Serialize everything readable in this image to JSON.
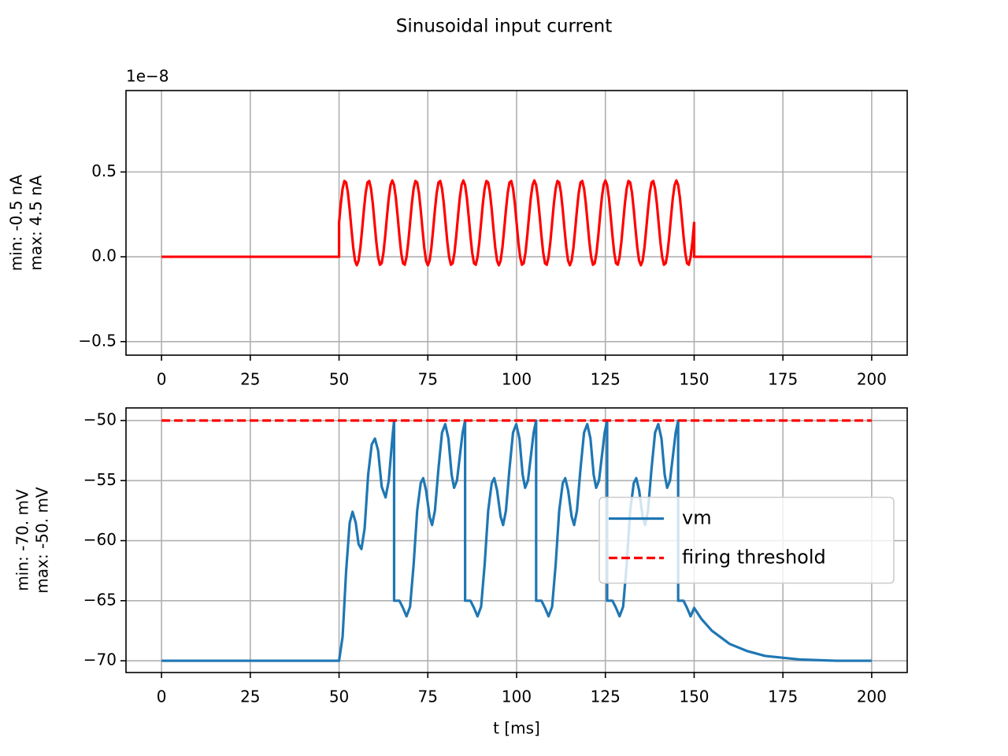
{
  "title": "Sinusoidal input current",
  "chart_data": [
    {
      "type": "line",
      "offset_label": "1e−8",
      "ylabel": [
        "min: -0.5 nA",
        "max: 4.5 nA"
      ],
      "xlim": [
        -10,
        210
      ],
      "ylim": [
        -0.58,
        0.98
      ],
      "xticks": [
        0,
        25,
        50,
        75,
        100,
        125,
        150,
        175,
        200
      ],
      "yticks": [
        {
          "value": -0.5,
          "label": "−0.5"
        },
        {
          "value": 0,
          "label": "0.0"
        },
        0.5
      ],
      "grid": true,
      "series": [
        {
          "color": "#ff0000",
          "x": [
            0,
            50,
            50,
            50.5,
            51,
            51.5,
            52,
            52.5,
            53,
            53.5,
            54,
            54.5,
            55,
            55.5,
            56,
            56.5,
            57,
            57.5,
            58,
            58.5,
            59,
            59.5,
            60,
            60.5,
            61,
            61.5,
            62,
            62.5,
            63,
            63.5,
            64,
            64.5,
            65,
            65.5,
            66,
            66.5,
            67,
            67.5,
            68,
            68.5,
            69,
            69.5,
            70,
            70.5,
            71,
            71.5,
            72,
            72.5,
            73,
            73.5,
            74,
            74.5,
            75,
            75.5,
            76,
            76.5,
            77,
            77.5,
            78,
            78.5,
            79,
            79.5,
            80,
            80.5,
            81,
            81.5,
            82,
            82.5,
            83,
            83.5,
            84,
            84.5,
            85,
            85.5,
            86,
            86.5,
            87,
            87.5,
            88,
            88.5,
            89,
            89.5,
            90,
            90.5,
            91,
            91.5,
            92,
            92.5,
            93,
            93.5,
            94,
            94.5,
            95,
            95.5,
            96,
            96.5,
            97,
            97.5,
            98,
            98.5,
            99,
            99.5,
            100,
            100.5,
            101,
            101.5,
            102,
            102.5,
            103,
            103.5,
            104,
            104.5,
            105,
            105.5,
            106,
            106.5,
            107,
            107.5,
            108,
            108.5,
            109,
            109.5,
            110,
            110.5,
            111,
            111.5,
            112,
            112.5,
            113,
            113.5,
            114,
            114.5,
            115,
            115.5,
            116,
            116.5,
            117,
            117.5,
            118,
            118.5,
            119,
            119.5,
            120,
            120.5,
            121,
            121.5,
            122,
            122.5,
            123,
            123.5,
            124,
            124.5,
            125,
            125.5,
            126,
            126.5,
            127,
            127.5,
            128,
            128.5,
            129,
            129.5,
            130,
            130.5,
            131,
            131.5,
            132,
            132.5,
            133,
            133.5,
            134,
            134.5,
            135,
            135.5,
            136,
            136.5,
            137,
            137.5,
            138,
            138.5,
            139,
            139.5,
            140,
            140.5,
            141,
            141.5,
            142,
            142.5,
            143,
            143.5,
            144,
            144.5,
            145,
            145.5,
            146,
            146.5,
            147,
            147.5,
            148,
            148.5,
            149,
            149.5,
            150,
            150,
            200
          ],
          "values": [
            0,
            0,
            0.2,
            0.314,
            0.402,
            0.447,
            0.438,
            0.377,
            0.277,
            0.161,
            0.053,
            -0.023,
            -0.05,
            -0.023,
            0.053,
            0.161,
            0.277,
            0.377,
            0.438,
            0.447,
            0.402,
            0.314,
            0.2,
            0.086,
            -0.002,
            -0.047,
            -0.038,
            0.023,
            0.123,
            0.239,
            0.347,
            0.423,
            0.45,
            0.423,
            0.347,
            0.239,
            0.123,
            0.023,
            -0.038,
            -0.047,
            -0.002,
            0.086,
            0.2,
            0.314,
            0.402,
            0.447,
            0.438,
            0.377,
            0.277,
            0.161,
            0.053,
            -0.023,
            -0.05,
            -0.023,
            0.053,
            0.161,
            0.277,
            0.377,
            0.438,
            0.447,
            0.402,
            0.314,
            0.2,
            0.086,
            -0.002,
            -0.047,
            -0.038,
            0.023,
            0.123,
            0.239,
            0.347,
            0.423,
            0.45,
            0.423,
            0.347,
            0.239,
            0.123,
            0.023,
            -0.038,
            -0.047,
            -0.002,
            0.086,
            0.2,
            0.314,
            0.402,
            0.447,
            0.438,
            0.377,
            0.277,
            0.161,
            0.053,
            -0.023,
            -0.05,
            -0.023,
            0.053,
            0.161,
            0.277,
            0.377,
            0.438,
            0.447,
            0.402,
            0.314,
            0.2,
            0.086,
            -0.002,
            -0.047,
            -0.038,
            0.023,
            0.123,
            0.239,
            0.347,
            0.423,
            0.45,
            0.423,
            0.347,
            0.239,
            0.123,
            0.023,
            -0.038,
            -0.047,
            -0.002,
            0.086,
            0.2,
            0.314,
            0.402,
            0.447,
            0.438,
            0.377,
            0.277,
            0.161,
            0.053,
            -0.023,
            -0.05,
            -0.023,
            0.053,
            0.161,
            0.277,
            0.377,
            0.438,
            0.447,
            0.402,
            0.314,
            0.2,
            0.086,
            -0.002,
            -0.047,
            -0.038,
            0.023,
            0.123,
            0.239,
            0.347,
            0.423,
            0.45,
            0.423,
            0.347,
            0.239,
            0.123,
            0.023,
            -0.038,
            -0.047,
            -0.002,
            0.086,
            0.2,
            0.314,
            0.402,
            0.447,
            0.438,
            0.377,
            0.277,
            0.161,
            0.053,
            -0.023,
            -0.05,
            -0.023,
            0.053,
            0.161,
            0.277,
            0.377,
            0.438,
            0.447,
            0.402,
            0.314,
            0.2,
            0.086,
            -0.002,
            -0.047,
            -0.038,
            0.023,
            0.123,
            0.239,
            0.347,
            0.423,
            0.45,
            0.423,
            0.347,
            0.239,
            0.123,
            0.023,
            -0.038,
            -0.047,
            -0.002,
            0.086,
            0.2,
            0,
            0
          ]
        }
      ]
    },
    {
      "type": "line",
      "ylabel": [
        "min: -70. mV",
        "max: -50. mV"
      ],
      "xlabel": "t [ms]",
      "xlim": [
        -10,
        210
      ],
      "ylim": [
        -70.98,
        -48.95
      ],
      "xticks": [
        0,
        25,
        50,
        75,
        100,
        125,
        150,
        175,
        200
      ],
      "yticks": [
        {
          "value": -70,
          "label": "−70"
        },
        {
          "value": -65,
          "label": "−65"
        },
        {
          "value": -60,
          "label": "−60"
        },
        {
          "value": -55,
          "label": "−55"
        },
        {
          "value": -50,
          "label": "−50"
        }
      ],
      "grid": true,
      "legend": "center right",
      "series": [
        {
          "name": "vm",
          "color": "#1f77b4",
          "x": [
            0,
            50,
            51,
            52,
            53,
            53.8,
            54.7,
            55.5,
            56.3,
            57.2,
            58.2,
            59.2,
            60.1,
            61,
            62,
            63.1,
            64,
            65,
            65.5,
            65.5,
            67,
            68,
            69,
            70,
            71,
            72,
            73,
            73.7,
            74.5,
            75.5,
            76.2,
            77,
            78,
            79,
            79.9,
            80.8,
            81.7,
            82.4,
            83.2,
            84,
            84.8,
            85.5,
            85.5,
            87,
            88,
            89,
            90,
            91,
            92,
            93,
            93.7,
            94.5,
            95.5,
            96.2,
            97,
            98,
            99,
            99.9,
            100.8,
            101.7,
            102.4,
            103.2,
            104,
            104.8,
            105.5,
            105.5,
            107,
            108,
            109,
            110,
            111,
            112,
            113,
            113.7,
            114.5,
            115.5,
            116.2,
            117,
            118,
            119,
            119.9,
            120.8,
            121.7,
            122.4,
            123.2,
            124,
            124.8,
            125.5,
            125.5,
            127,
            128,
            129,
            130,
            131,
            132,
            133,
            133.7,
            134.5,
            135.5,
            136.2,
            137,
            138,
            139,
            139.9,
            140.8,
            141.7,
            142.4,
            143.2,
            144,
            144.8,
            145.5,
            145.5,
            147,
            148,
            149,
            150,
            152,
            155,
            160,
            165,
            170,
            180,
            190,
            200
          ],
          "values": [
            -70,
            -70,
            -68,
            -62.5,
            -58.5,
            -57.6,
            -58.5,
            -60.3,
            -60.7,
            -59,
            -54.5,
            -52,
            -51.5,
            -52.5,
            -55.5,
            -56.4,
            -55,
            -51.5,
            -50,
            -65,
            -65,
            -65.6,
            -66.3,
            -65.5,
            -62,
            -57.5,
            -55.2,
            -54.8,
            -55.8,
            -58,
            -58.7,
            -57.5,
            -54,
            -51,
            -50.3,
            -51.5,
            -54.5,
            -55.6,
            -55,
            -53,
            -51,
            -50,
            -65,
            -65,
            -65.6,
            -66.3,
            -65.5,
            -62,
            -57.5,
            -55.2,
            -54.8,
            -55.8,
            -58,
            -58.7,
            -57.5,
            -54,
            -51,
            -50.3,
            -51.5,
            -54.5,
            -55.6,
            -55,
            -53,
            -51,
            -50,
            -65,
            -65,
            -65.6,
            -66.3,
            -65.5,
            -62,
            -57.5,
            -55.2,
            -54.8,
            -55.8,
            -58,
            -58.7,
            -57.5,
            -54,
            -51,
            -50.3,
            -51.5,
            -54.5,
            -55.6,
            -55,
            -53,
            -51,
            -50,
            -65,
            -65,
            -65.6,
            -66.3,
            -65.5,
            -62,
            -57.5,
            -55.2,
            -54.8,
            -55.8,
            -58,
            -58.7,
            -57.5,
            -54,
            -51,
            -50.3,
            -51.5,
            -54.5,
            -55.6,
            -55,
            -53,
            -51,
            -50,
            -65,
            -65,
            -65.6,
            -66.3,
            -65.6,
            -66.5,
            -67.5,
            -68.6,
            -69.2,
            -69.6,
            -69.9,
            -70,
            -70
          ]
        },
        {
          "name": "firing threshold",
          "color": "#ff0000",
          "dashed": true,
          "x": [
            0,
            200
          ],
          "values": [
            -50,
            -50
          ]
        }
      ]
    }
  ]
}
